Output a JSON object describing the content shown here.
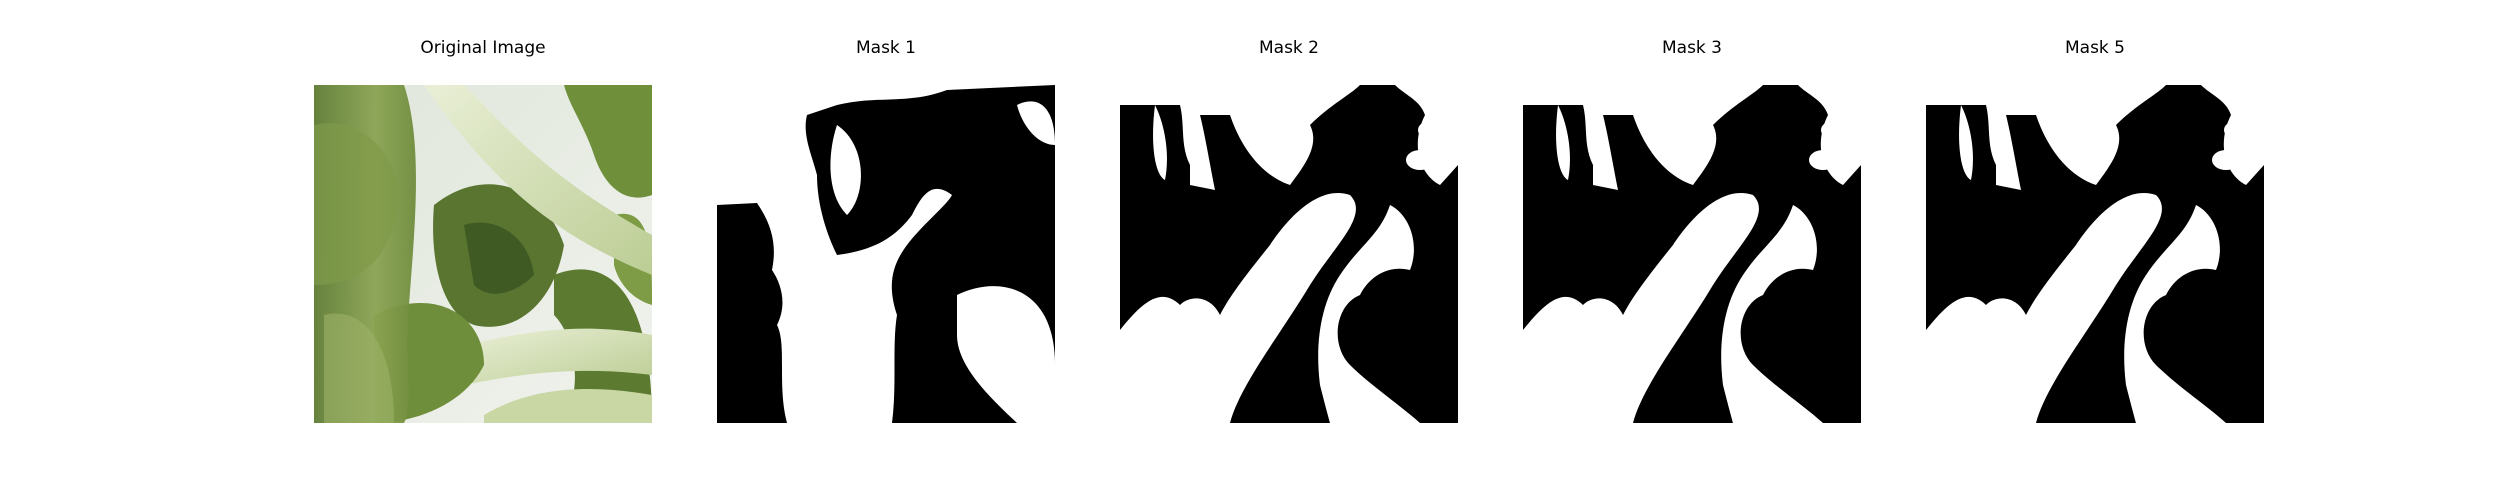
{
  "figure": {
    "panels": [
      {
        "title": "Original Image",
        "kind": "photo"
      },
      {
        "title": "Mask 1",
        "kind": "mask"
      },
      {
        "title": "Mask 2",
        "kind": "mask"
      },
      {
        "title": "Mask 3",
        "kind": "mask"
      },
      {
        "title": "Mask 5",
        "kind": "mask"
      }
    ],
    "colors": {
      "mask_fg": "#000000",
      "mask_bg": "#ffffff",
      "leaf_dark": "#4f6b2a",
      "leaf_light": "#9fb46a",
      "stem": "#d9e3c2",
      "background": "#e6ebe4"
    }
  }
}
